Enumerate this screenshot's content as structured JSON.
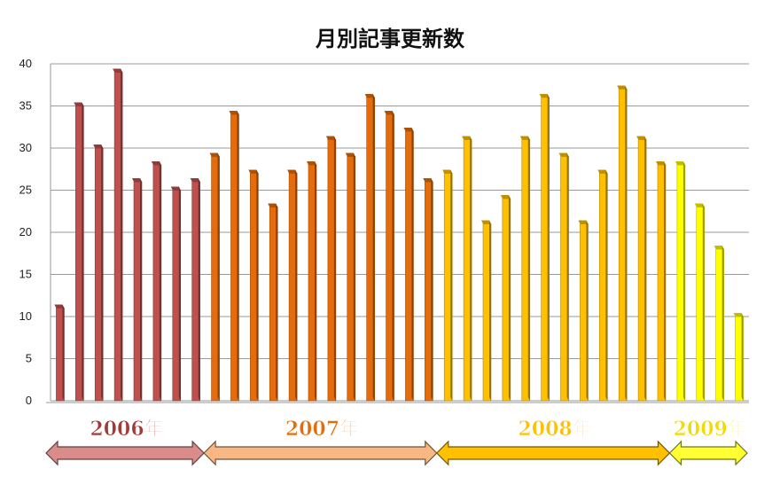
{
  "chart_data": {
    "type": "bar",
    "title": "月別記事更新数",
    "ylim": [
      0,
      40
    ],
    "yticks": [
      0,
      5,
      10,
      15,
      20,
      25,
      30,
      35,
      40
    ],
    "grid": true,
    "values": [
      11,
      35,
      30,
      39,
      26,
      28,
      25,
      26,
      29,
      34,
      27,
      23,
      27,
      28,
      31,
      29,
      36,
      34,
      32,
      26,
      27,
      31,
      21,
      24,
      31,
      36,
      29,
      21,
      27,
      37,
      31,
      28,
      28,
      23,
      18,
      10
    ],
    "groups": [
      {
        "label": "2006年",
        "count": 8,
        "color": "#c0504d",
        "text_color": "#a23b38",
        "arrow_color": "#d98c8a"
      },
      {
        "label": "2007年",
        "count": 12,
        "color": "#e46c0a",
        "text_color": "#e46c0a",
        "arrow_color": "#f9b784"
      },
      {
        "label": "2008年",
        "count": 12,
        "color": "#ffc000",
        "text_color": "#ffc000",
        "arrow_color": "#ffc000"
      },
      {
        "label": "2009年",
        "count": 4,
        "color": "#ffff00",
        "text_color": "#f0dc00",
        "arrow_color": "#ffff33"
      }
    ]
  }
}
